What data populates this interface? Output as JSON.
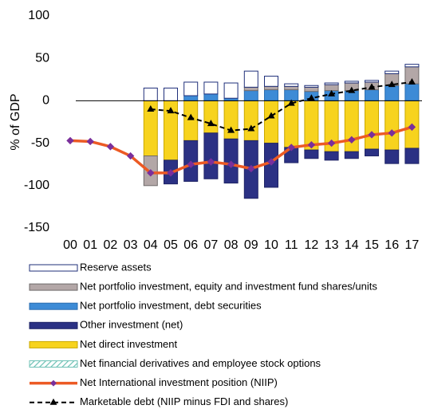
{
  "chart_data": {
    "type": "bar",
    "y_label": "% of GDP",
    "categories": [
      "00",
      "01",
      "02",
      "03",
      "04",
      "05",
      "06",
      "07",
      "08",
      "09",
      "10",
      "11",
      "12",
      "13",
      "14",
      "15",
      "16",
      "17"
    ],
    "ylim": [
      -150,
      100
    ],
    "yticks": [
      -150,
      -100,
      -50,
      0,
      50,
      100
    ],
    "series": [
      {
        "name": "Reserve assets",
        "type": "bar",
        "color": "#ffffff",
        "stroke": "#1f2f7a",
        "values": [
          null,
          null,
          null,
          null,
          15,
          15,
          16,
          14,
          18,
          19,
          12,
          3,
          2,
          2,
          2,
          2,
          3,
          3
        ]
      },
      {
        "name": "Net portfolio investment, equity and investment fund shares/units",
        "type": "bar",
        "color": "#b3a7a7",
        "stroke": "#6f6a6a",
        "values": [
          null,
          null,
          null,
          null,
          -35,
          0,
          0,
          0,
          0,
          4,
          4,
          4,
          5,
          7,
          9,
          9,
          14,
          20
        ]
      },
      {
        "name": "Net portfolio investment, debt securities",
        "type": "bar",
        "color": "#3d8bd6",
        "stroke": "#2a6db0",
        "values": [
          null,
          null,
          null,
          null,
          0,
          0,
          6,
          8,
          3,
          12,
          13,
          13,
          11,
          12,
          12,
          13,
          18,
          20
        ]
      },
      {
        "name": "Other investment (net)",
        "type": "bar",
        "color": "#2b3184",
        "stroke": "#1f2466",
        "values": [
          null,
          null,
          null,
          null,
          0,
          -28,
          -48,
          -54,
          -52,
          -68,
          -52,
          -18,
          -10,
          -10,
          -8,
          -8,
          -16,
          -18
        ]
      },
      {
        "name": "Net direct investment",
        "type": "bar",
        "color": "#f7d31e",
        "stroke": "#c9a800",
        "values": [
          null,
          null,
          null,
          null,
          -65,
          -70,
          -47,
          -38,
          -45,
          -47,
          -50,
          -55,
          -58,
          -60,
          -60,
          -57,
          -58,
          -56
        ]
      },
      {
        "name": "Net financial derivatives and employee stock options",
        "type": "bar",
        "color": "#6fc2b6",
        "stroke": "#6fc2b6",
        "hatch": true,
        "values": [
          null,
          null,
          null,
          null,
          0,
          0,
          0,
          0,
          0,
          0,
          0,
          0,
          0,
          0,
          0,
          0,
          0,
          0
        ]
      },
      {
        "name": "Net International investment position (NIIP)",
        "type": "line",
        "color": "#ec5a24",
        "marker": "diamond",
        "marker_color": "#7a2f9b",
        "values": [
          -47,
          -48,
          -54,
          -65,
          -85,
          -85,
          -75,
          -72,
          -75,
          -80,
          -72,
          -55,
          -52,
          -50,
          -46,
          -40,
          -38,
          -31
        ]
      },
      {
        "name": "Marketable debt (NIIP minus FDI and shares)",
        "type": "line",
        "color": "#000000",
        "marker": "triangle",
        "dash": true,
        "values": [
          null,
          null,
          null,
          null,
          -10,
          -12,
          -20,
          -27,
          -35,
          -33,
          -18,
          -3,
          3,
          8,
          12,
          16,
          19,
          22
        ]
      }
    ]
  }
}
